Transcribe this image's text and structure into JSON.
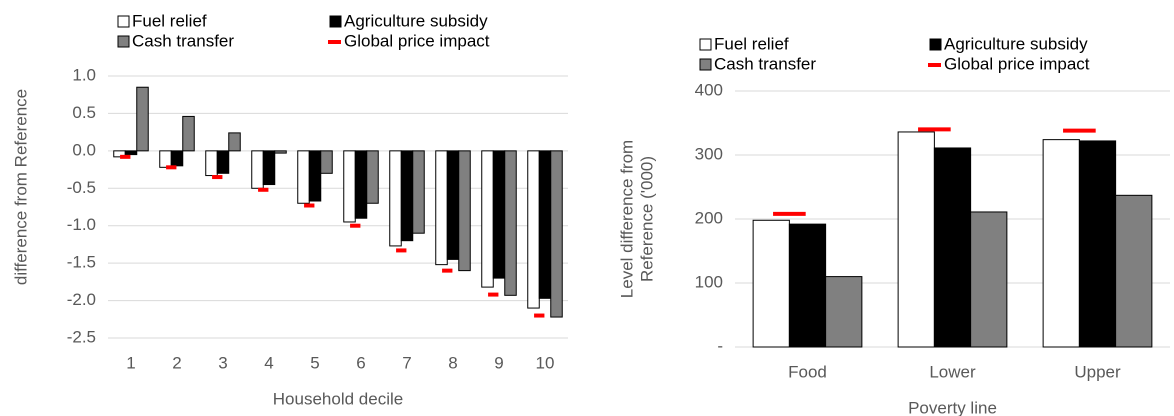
{
  "chart_data": [
    {
      "type": "bar",
      "x_label": "Household decile",
      "y_label": "difference from Reference",
      "categories": [
        "1",
        "2",
        "3",
        "4",
        "5",
        "6",
        "7",
        "8",
        "9",
        "10"
      ],
      "series": [
        {
          "name": "Fuel relief",
          "color": "#ffffff",
          "kind": "bar",
          "values": [
            -0.08,
            -0.22,
            -0.33,
            -0.5,
            -0.7,
            -0.95,
            -1.27,
            -1.52,
            -1.82,
            -2.1
          ]
        },
        {
          "name": "Agriculture subsidy",
          "color": "#000000",
          "kind": "bar",
          "values": [
            -0.05,
            -0.2,
            -0.3,
            -0.45,
            -0.67,
            -0.9,
            -1.2,
            -1.45,
            -1.7,
            -1.97
          ]
        },
        {
          "name": "Cash transfer",
          "color": "#808080",
          "kind": "bar",
          "values": [
            0.85,
            0.46,
            0.24,
            -0.03,
            -0.3,
            -0.7,
            -1.1,
            -1.6,
            -1.93,
            -2.22
          ]
        },
        {
          "name": "Global price impact",
          "color": "#ff0000",
          "kind": "marker",
          "values": [
            -0.08,
            -0.22,
            -0.35,
            -0.52,
            -0.73,
            -1.0,
            -1.33,
            -1.6,
            -1.92,
            -2.2
          ]
        }
      ],
      "ylim": [
        -2.5,
        1.0
      ],
      "yticks": [
        {
          "value": 1.0,
          "label": "1.0"
        },
        0.5,
        {
          "value": 0,
          "label": "0.0"
        },
        -0.5,
        {
          "value": -1.0,
          "label": "-1.0"
        },
        -1.5,
        {
          "value": -2.0,
          "label": "-2.0"
        },
        -2.5
      ]
    },
    {
      "type": "bar",
      "x_label": "Poverty line",
      "y_label": [
        "Level difference from",
        "Reference ('000)"
      ],
      "categories": [
        "Food",
        "Lower",
        "Upper"
      ],
      "series": [
        {
          "name": "Fuel relief",
          "color": "#ffffff",
          "kind": "bar",
          "values": [
            198,
            336,
            324
          ]
        },
        {
          "name": "Agriculture subsidy",
          "color": "#000000",
          "kind": "bar",
          "values": [
            192,
            311,
            322
          ]
        },
        {
          "name": "Cash transfer",
          "color": "#808080",
          "kind": "bar",
          "values": [
            110,
            211,
            237
          ]
        },
        {
          "name": "Global price impact",
          "color": "#ff0000",
          "kind": "marker",
          "values": [
            208,
            340,
            338
          ]
        }
      ],
      "ylim": [
        0,
        400
      ],
      "yticks": [
        {
          "value": 0,
          "label": "-"
        },
        100,
        200,
        300,
        400
      ]
    }
  ]
}
